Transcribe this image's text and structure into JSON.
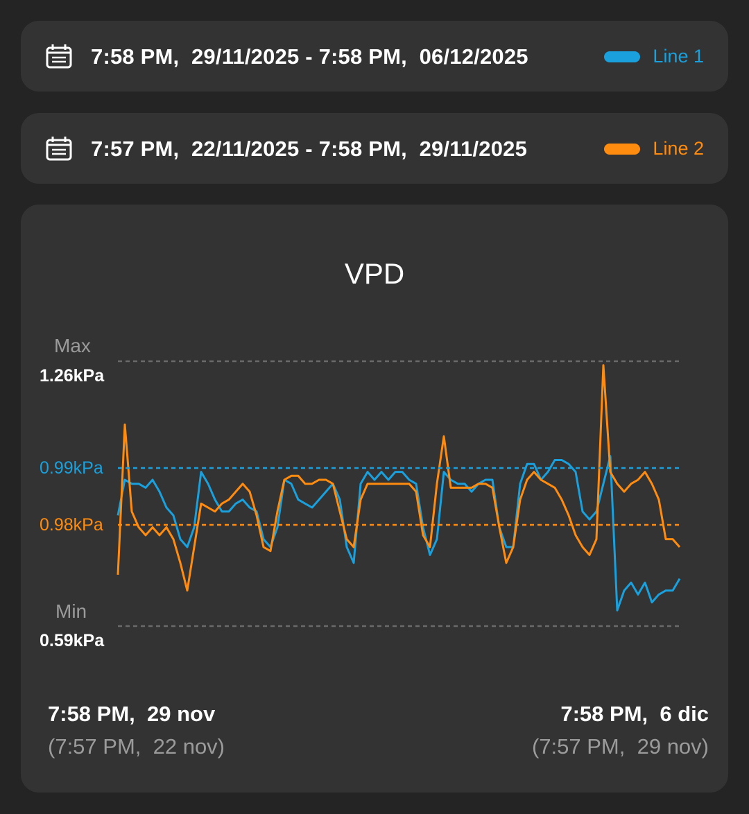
{
  "ranges": [
    {
      "text": "7:58 PM,  29/11/2025 - 7:58 PM,  06/12/2025",
      "legend": "Line 1",
      "color": "#1aa0dc",
      "icon": "calendar-icon"
    },
    {
      "text": "7:57 PM,  22/11/2025 - 7:58 PM,  29/11/2025",
      "legend": "Line 2",
      "color": "#ff8c0f",
      "icon": "calendar-icon"
    }
  ],
  "chart_data": {
    "type": "line",
    "title": "VPD",
    "ylim": [
      0.59,
      1.26
    ],
    "grid": false,
    "max_label": "Max",
    "max_value": "1.26kPa",
    "min_label": "Min",
    "min_value": "0.59kPa",
    "x_start": {
      "primary": "7:58 PM,  29 nov",
      "secondary": "(7:57 PM,  22 nov)"
    },
    "x_end": {
      "primary": "7:58 PM,  6 dic",
      "secondary": "(7:57 PM,  29 nov)"
    },
    "series": [
      {
        "name": "Line 1",
        "color": "#1aa0dc",
        "average": 0.99,
        "average_label": "0.99kPa",
        "values": [
          0.87,
          0.96,
          0.95,
          0.95,
          0.94,
          0.96,
          0.93,
          0.89,
          0.87,
          0.81,
          0.79,
          0.84,
          0.98,
          0.95,
          0.91,
          0.88,
          0.88,
          0.9,
          0.91,
          0.89,
          0.88,
          0.81,
          0.79,
          0.84,
          0.96,
          0.95,
          0.91,
          0.9,
          0.89,
          0.91,
          0.93,
          0.95,
          0.91,
          0.79,
          0.75,
          0.95,
          0.98,
          0.96,
          0.98,
          0.96,
          0.98,
          0.98,
          0.96,
          0.95,
          0.84,
          0.77,
          0.81,
          0.98,
          0.96,
          0.95,
          0.95,
          0.93,
          0.95,
          0.96,
          0.96,
          0.84,
          0.79,
          0.79,
          0.95,
          1.0,
          1.0,
          0.96,
          0.98,
          1.01,
          1.01,
          1.0,
          0.98,
          0.88,
          0.86,
          0.88,
          0.95,
          1.02,
          0.63,
          0.68,
          0.7,
          0.67,
          0.7,
          0.65,
          0.67,
          0.68,
          0.68,
          0.71
        ]
      },
      {
        "name": "Line 2",
        "color": "#ff8c0f",
        "average": 0.98,
        "average_label": "0.98kPa",
        "values": [
          0.72,
          1.1,
          0.88,
          0.84,
          0.82,
          0.84,
          0.82,
          0.84,
          0.81,
          0.75,
          0.68,
          0.79,
          0.9,
          0.89,
          0.88,
          0.9,
          0.91,
          0.93,
          0.95,
          0.93,
          0.87,
          0.79,
          0.78,
          0.88,
          0.96,
          0.97,
          0.97,
          0.95,
          0.95,
          0.96,
          0.96,
          0.95,
          0.88,
          0.81,
          0.79,
          0.91,
          0.95,
          0.95,
          0.95,
          0.95,
          0.95,
          0.95,
          0.95,
          0.93,
          0.82,
          0.79,
          0.95,
          1.07,
          0.94,
          0.94,
          0.94,
          0.94,
          0.95,
          0.95,
          0.94,
          0.84,
          0.75,
          0.79,
          0.91,
          0.96,
          0.98,
          0.96,
          0.95,
          0.94,
          0.91,
          0.87,
          0.82,
          0.79,
          0.77,
          0.81,
          1.25,
          0.98,
          0.95,
          0.93,
          0.95,
          0.96,
          0.98,
          0.95,
          0.91,
          0.81,
          0.81,
          0.79
        ]
      }
    ]
  }
}
